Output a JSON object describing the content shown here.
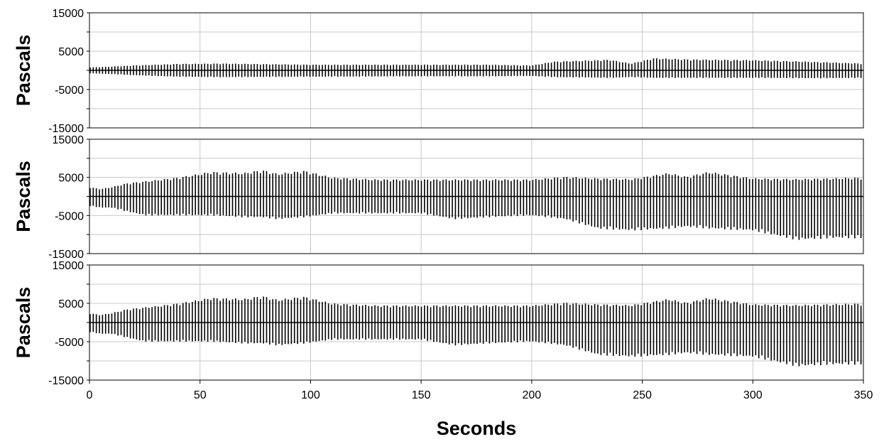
{
  "chart_data": {
    "type": "line",
    "layout": "three vertically stacked panels sharing one x-axis",
    "xlabel": "Seconds",
    "xlim": [
      0,
      350
    ],
    "x_ticks": [
      "0",
      "50",
      "100",
      "150",
      "200",
      "250",
      "300",
      "350"
    ],
    "grid": true,
    "colors": {
      "line": "#000000",
      "grid": "#c8c8c8"
    },
    "panels": [
      {
        "ylabel": "Pascals",
        "ylim": [
          -15000,
          15000
        ],
        "y_ticks": [
          "15000",
          "5000",
          "-5000",
          "-15000"
        ],
        "envelope": {
          "t": [
            0,
            10,
            20,
            40,
            60,
            100,
            150,
            180,
            200,
            210,
            225,
            235,
            245,
            255,
            270,
            300,
            330,
            350
          ],
          "pos": [
            800,
            1000,
            1300,
            1700,
            1800,
            1500,
            1500,
            1500,
            1300,
            2300,
            2600,
            2800,
            1800,
            3200,
            2900,
            2700,
            2200,
            1800
          ],
          "neg": [
            -800,
            -1000,
            -1300,
            -1700,
            -1800,
            -1700,
            -1600,
            -1600,
            -1500,
            -1800,
            -1900,
            -2000,
            -1800,
            -2000,
            -2000,
            -2000,
            -2100,
            -2000
          ]
        }
      },
      {
        "ylabel": "Pascals",
        "ylim": [
          -15000,
          15000
        ],
        "y_ticks": [
          "15000",
          "5000",
          "-5000",
          "-15000"
        ],
        "envelope": {
          "t": [
            0,
            5,
            10,
            17,
            25,
            40,
            55,
            70,
            78,
            85,
            97,
            110,
            130,
            150,
            165,
            180,
            200,
            215,
            230,
            245,
            262,
            270,
            280,
            300,
            320,
            335,
            350
          ],
          "pos": [
            2500,
            2000,
            2500,
            3500,
            4000,
            5000,
            6500,
            6200,
            7000,
            6000,
            6800,
            5000,
            4500,
            4500,
            4500,
            4500,
            4500,
            5200,
            4800,
            4600,
            6200,
            5200,
            6500,
            4800,
            4600,
            4800,
            5000
          ],
          "neg": [
            -2500,
            -3000,
            -3000,
            -4000,
            -5000,
            -5000,
            -5000,
            -5500,
            -5500,
            -6000,
            -5500,
            -4500,
            -4500,
            -4500,
            -6000,
            -5500,
            -5000,
            -6000,
            -8500,
            -9000,
            -8500,
            -8000,
            -8500,
            -9000,
            -11500,
            -11000,
            -11000
          ]
        }
      },
      {
        "ylabel": "Pascals",
        "ylim": [
          -15000,
          15000
        ],
        "y_ticks": [
          "15000",
          "5000",
          "-5000",
          "-15000"
        ],
        "envelope": {
          "t": [
            0,
            5,
            10,
            17,
            25,
            40,
            55,
            70,
            78,
            85,
            97,
            110,
            130,
            150,
            165,
            180,
            200,
            215,
            230,
            245,
            262,
            270,
            280,
            300,
            320,
            335,
            350
          ],
          "pos": [
            2500,
            2000,
            2500,
            3500,
            4000,
            5000,
            6500,
            6200,
            7000,
            6000,
            6800,
            5000,
            4500,
            4500,
            4500,
            4500,
            4500,
            5200,
            4800,
            4600,
            6200,
            5200,
            6500,
            4800,
            4600,
            4800,
            5000
          ],
          "neg": [
            -2500,
            -3000,
            -3000,
            -4000,
            -5000,
            -5000,
            -5000,
            -5500,
            -5500,
            -6000,
            -5500,
            -4500,
            -4500,
            -4500,
            -6000,
            -5500,
            -5000,
            -6000,
            -8500,
            -9000,
            -8500,
            -8000,
            -8500,
            -9000,
            -11500,
            -11000,
            -11000
          ]
        }
      }
    ]
  }
}
